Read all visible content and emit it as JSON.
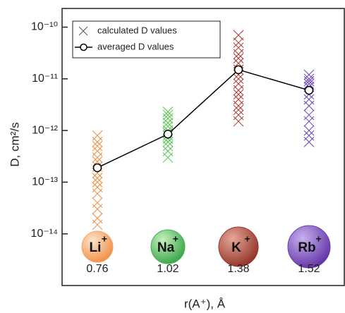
{
  "chart_data": {
    "type": "scatter",
    "y_label": "D, cm²/s",
    "x_label": "r(A⁺), Å",
    "categories": [
      "0.76",
      "1.02",
      "1.38",
      "1.52"
    ],
    "ions": [
      {
        "name": "Li",
        "charge": "+"
      },
      {
        "name": "Na",
        "charge": "+"
      },
      {
        "name": "K",
        "charge": "+"
      },
      {
        "name": "Rb",
        "charge": "+"
      }
    ],
    "point_colors": [
      "#f08a3c",
      "#52c24e",
      "#a8342c",
      "#6a40b4"
    ],
    "ion_colors": [
      "#f3a66c",
      "#3fb44a",
      "#a0382c",
      "#6c3cb0"
    ],
    "y_log": true,
    "ylim": [
      1e-15,
      2.3e-10
    ],
    "yticks": [
      {
        "value": 1e-14,
        "label": "10⁻¹⁴"
      },
      {
        "value": 1e-13,
        "label": "10⁻¹³"
      },
      {
        "value": 1e-12,
        "label": "10⁻¹²"
      },
      {
        "value": 1e-11,
        "label": "10⁻¹¹"
      },
      {
        "value": 1e-10,
        "label": "10⁻¹⁰"
      }
    ],
    "legend": "top-left",
    "series": [
      {
        "name": "calculated D values",
        "color": "#555555",
        "values": [
          [
            8e-13,
            6e-13,
            5e-13,
            4e-13,
            3e-13,
            2.5e-13,
            2e-13,
            1.5e-13,
            1.2e-13,
            1e-13,
            8e-14,
            6e-14,
            4e-14,
            3e-14,
            2e-14,
            1.5e-14
          ],
          [
            2.3e-12,
            2e-12,
            1.7e-12,
            1.4e-12,
            1.2e-12,
            1e-12,
            9e-13,
            8e-13,
            7e-13,
            6e-13,
            5e-13,
            4e-13,
            3e-13
          ],
          [
            7e-11,
            5e-11,
            4e-11,
            3e-11,
            2.5e-11,
            2e-11,
            1.5e-11,
            1.2e-11,
            1e-11,
            8e-12,
            6e-12,
            5e-12,
            4e-12,
            3e-12,
            2.5e-12,
            2e-12,
            1.5e-12
          ],
          [
            1.2e-11,
            1e-11,
            9e-12,
            8e-12,
            7e-12,
            5e-12,
            4e-12,
            3e-12,
            2e-12,
            1.5e-12,
            1e-12,
            8e-13,
            6e-13
          ]
        ]
      },
      {
        "name": "averaged D values",
        "color": "#000000",
        "values": [
          1.9e-13,
          8.5e-13,
          1.5e-11,
          6e-12
        ]
      }
    ]
  }
}
